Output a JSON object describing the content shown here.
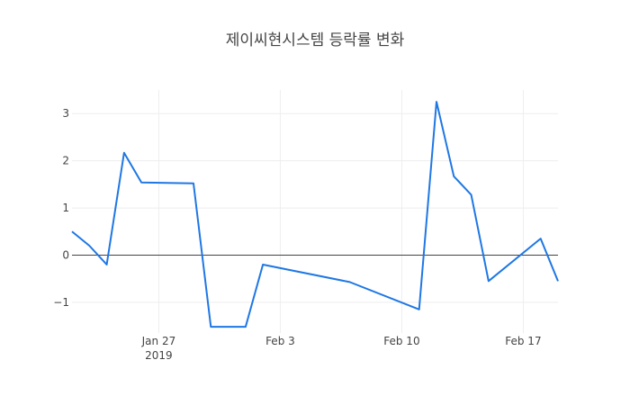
{
  "chart_data": {
    "type": "line",
    "title": "제이씨현시스템 등락률 변화",
    "xlabel": "",
    "ylabel": "",
    "x_axis": {
      "type": "date",
      "range": [
        "2019-01-22",
        "2019-02-19"
      ],
      "ticks": [
        {
          "date": "2019-01-27",
          "label": "Jan 27",
          "sublabel": "2019"
        },
        {
          "date": "2019-02-03",
          "label": "Feb 3",
          "sublabel": ""
        },
        {
          "date": "2019-02-10",
          "label": "Feb 10",
          "sublabel": ""
        },
        {
          "date": "2019-02-17",
          "label": "Feb 17",
          "sublabel": ""
        }
      ]
    },
    "y_axis": {
      "range": [
        -1.65,
        3.5
      ],
      "ticks": [
        {
          "value": -1,
          "label": "−1"
        },
        {
          "value": 0,
          "label": "0"
        },
        {
          "value": 1,
          "label": "1"
        },
        {
          "value": 2,
          "label": "2"
        },
        {
          "value": 3,
          "label": "3"
        }
      ]
    },
    "grid": true,
    "series": [
      {
        "color": "#1f77e4",
        "points": [
          {
            "x": "2019-01-22",
            "y": 0.5
          },
          {
            "x": "2019-01-23",
            "y": 0.2
          },
          {
            "x": "2019-01-24",
            "y": -0.2
          },
          {
            "x": "2019-01-25",
            "y": 2.17
          },
          {
            "x": "2019-01-26",
            "y": 1.54
          },
          {
            "x": "2019-01-29",
            "y": 1.52
          },
          {
            "x": "2019-01-30",
            "y": -1.52
          },
          {
            "x": "2019-01-31",
            "y": -1.52
          },
          {
            "x": "2019-02-01",
            "y": -1.52
          },
          {
            "x": "2019-02-02",
            "y": -0.2
          },
          {
            "x": "2019-02-07",
            "y": -0.57
          },
          {
            "x": "2019-02-11",
            "y": -1.15
          },
          {
            "x": "2019-02-12",
            "y": 3.25
          },
          {
            "x": "2019-02-13",
            "y": 1.67
          },
          {
            "x": "2019-02-14",
            "y": 1.28
          },
          {
            "x": "2019-02-15",
            "y": -0.55
          },
          {
            "x": "2019-02-18",
            "y": 0.35
          },
          {
            "x": "2019-02-19",
            "y": -0.55
          }
        ]
      }
    ]
  }
}
